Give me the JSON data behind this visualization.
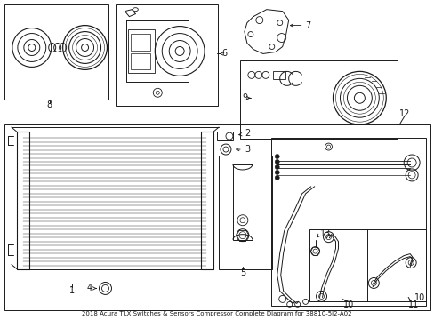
{
  "title": "2018 Acura TLX Switches & Sensors Compressor Complete Diagram for 38810-5J2-A02",
  "bg_color": "#ffffff",
  "line_color": "#1a1a1a",
  "fig_width": 4.89,
  "fig_height": 3.6,
  "dpi": 100
}
